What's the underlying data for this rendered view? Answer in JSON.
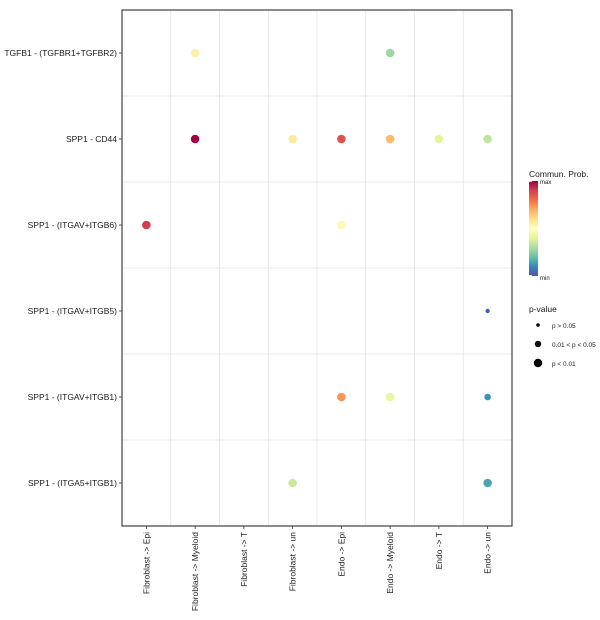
{
  "chart_data": {
    "type": "scatter",
    "title": "",
    "xlabel": "",
    "ylabel": "",
    "x_categories": [
      "Fibroblast -> Epi",
      "Fibroblast -> Myeloid",
      "Fibroblast -> T",
      "Fibroblast -> un",
      "Endo -> Epi",
      "Endo -> Myeloid",
      "Endo -> T",
      "Endo -> un"
    ],
    "y_categories": [
      "TGFB1 - (TGFBR1+TGFBR2)",
      "SPP1 - CD44",
      "SPP1 - (ITGAV+ITGB6)",
      "SPP1 - (ITGAV+ITGB5)",
      "SPP1 - (ITGAV+ITGB1)",
      "SPP1 - (ITGA5+ITGB1)"
    ],
    "points": [
      {
        "x": "Fibroblast -> Myeloid",
        "y": "TGFB1 - (TGFBR1+TGFBR2)",
        "prob": 0.55,
        "pval_level": 2
      },
      {
        "x": "Endo -> Myeloid",
        "y": "TGFB1 - (TGFBR1+TGFBR2)",
        "prob": 0.28,
        "pval_level": 2
      },
      {
        "x": "Fibroblast -> Myeloid",
        "y": "SPP1 - CD44",
        "prob": 1.0,
        "pval_level": 2
      },
      {
        "x": "Fibroblast -> un",
        "y": "SPP1 - CD44",
        "prob": 0.57,
        "pval_level": 2
      },
      {
        "x": "Endo -> Epi",
        "y": "SPP1 - CD44",
        "prob": 0.86,
        "pval_level": 2
      },
      {
        "x": "Endo -> Myeloid",
        "y": "SPP1 - CD44",
        "prob": 0.68,
        "pval_level": 2
      },
      {
        "x": "Endo -> T",
        "y": "SPP1 - CD44",
        "prob": 0.4,
        "pval_level": 2
      },
      {
        "x": "Endo -> un",
        "y": "SPP1 - CD44",
        "prob": 0.33,
        "pval_level": 2
      },
      {
        "x": "Fibroblast -> Epi",
        "y": "SPP1 - (ITGAV+ITGB6)",
        "prob": 0.9,
        "pval_level": 2
      },
      {
        "x": "Endo -> Epi",
        "y": "SPP1 - (ITGAV+ITGB6)",
        "prob": 0.52,
        "pval_level": 2
      },
      {
        "x": "Endo -> un",
        "y": "SPP1 - (ITGAV+ITGB5)",
        "prob": 0.02,
        "pval_level": 0
      },
      {
        "x": "Endo -> Epi",
        "y": "SPP1 - (ITGAV+ITGB1)",
        "prob": 0.74,
        "pval_level": 2
      },
      {
        "x": "Endo -> Myeloid",
        "y": "SPP1 - (ITGAV+ITGB1)",
        "prob": 0.42,
        "pval_level": 2
      },
      {
        "x": "Endo -> un",
        "y": "SPP1 - (ITGAV+ITGB1)",
        "prob": 0.12,
        "pval_level": 1
      },
      {
        "x": "Fibroblast -> un",
        "y": "SPP1 - (ITGA5+ITGB1)",
        "prob": 0.35,
        "pval_level": 2
      },
      {
        "x": "Endo -> un",
        "y": "SPP1 - (ITGA5+ITGB1)",
        "prob": 0.15,
        "pval_level": 2
      }
    ],
    "color_legend": {
      "title": "Commun. Prob.",
      "max_label": "max",
      "min_label": "min",
      "colors": [
        "#5e4fa2",
        "#3288bd",
        "#66c2a5",
        "#abdda4",
        "#e6f598",
        "#ffffbf",
        "#fee08b",
        "#fdae61",
        "#f46d43",
        "#d53e4f",
        "#9e0142"
      ]
    },
    "size_legend": {
      "title": "p-value",
      "entries": [
        "p > 0.05",
        "0.01 < p < 0.05",
        "p < 0.01"
      ]
    },
    "grid": true,
    "legend_position": "right"
  }
}
